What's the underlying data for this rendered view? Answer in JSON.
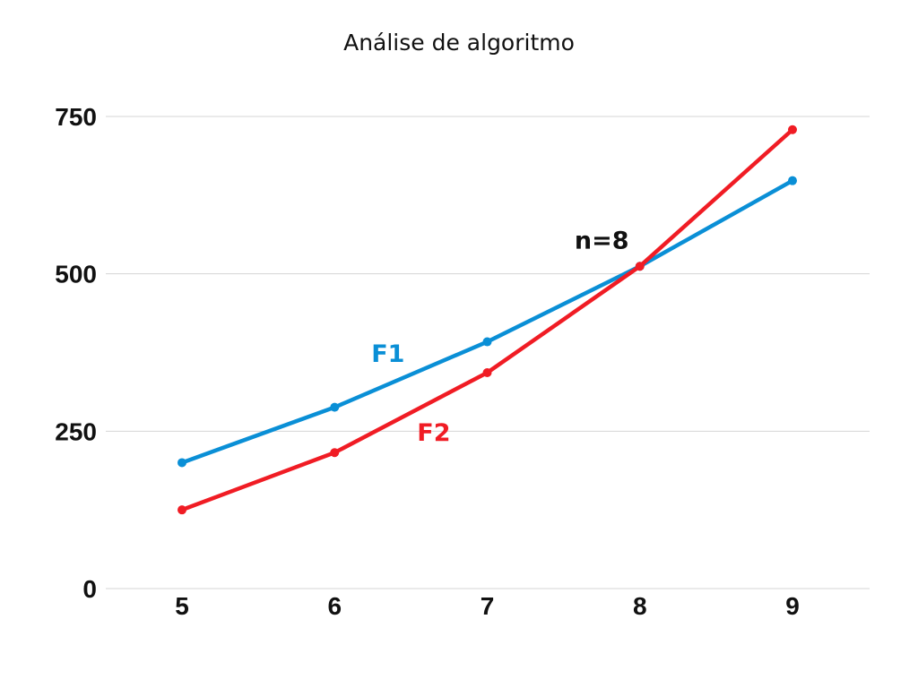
{
  "chart_data": {
    "type": "line",
    "title": "Análise de algoritmo",
    "xlabel": "",
    "ylabel": "",
    "x": [
      5,
      6,
      7,
      8,
      9
    ],
    "x_tick_labels": [
      "5",
      "6",
      "7",
      "8",
      "9"
    ],
    "y_tick_values": [
      0,
      250,
      500,
      750
    ],
    "y_tick_labels": [
      "0",
      "250",
      "500",
      "750"
    ],
    "ylim": [
      0,
      750
    ],
    "grid": true,
    "legend": "none",
    "series": [
      {
        "name": "F1",
        "values": [
          200,
          288,
          392,
          512,
          648
        ],
        "color": "#0a8fd6",
        "label_at": [
          6.35,
          360
        ]
      },
      {
        "name": "F2",
        "values": [
          125,
          216,
          343,
          512,
          729
        ],
        "color": "#f01c24",
        "label_at": [
          6.65,
          235
        ]
      }
    ],
    "annotations": [
      {
        "text": "n=8",
        "x": 7.75,
        "y": 540
      }
    ]
  }
}
